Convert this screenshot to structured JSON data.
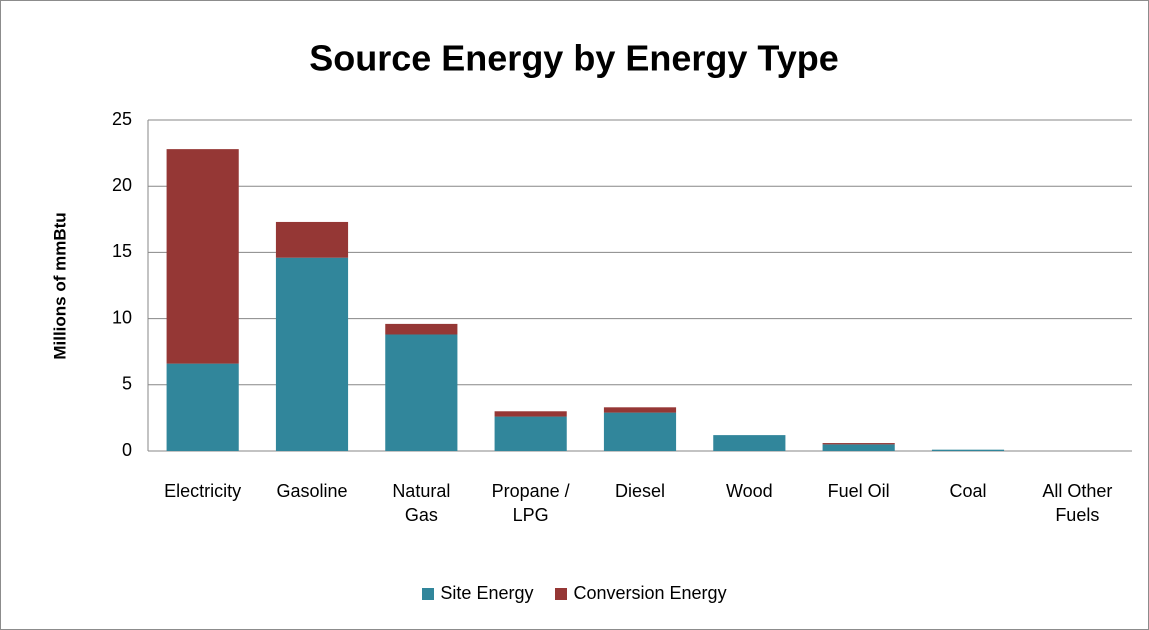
{
  "chart_data": {
    "type": "stacked_bar",
    "title": "Source Energy by Energy Type",
    "y_label": "Millions of mmBtu",
    "categories": [
      "Electricity",
      "Gasoline",
      "Natural Gas",
      "Propane / LPG",
      "Diesel",
      "Wood",
      "Fuel Oil",
      "Coal",
      "All Other Fuels"
    ],
    "series": [
      {
        "name": "Site Energy",
        "color": "#31869b",
        "values": [
          6.6,
          14.6,
          8.8,
          2.6,
          2.9,
          1.2,
          0.5,
          0.1,
          0
        ]
      },
      {
        "name": "Conversion Energy",
        "color": "#953735",
        "values": [
          16.2,
          2.7,
          0.8,
          0.4,
          0.4,
          0,
          0.1,
          0,
          0
        ]
      }
    ],
    "ylim": [
      0,
      25
    ],
    "yticks": [
      0,
      5,
      10,
      15,
      20,
      25
    ],
    "grid": true,
    "legend": "bottom"
  }
}
